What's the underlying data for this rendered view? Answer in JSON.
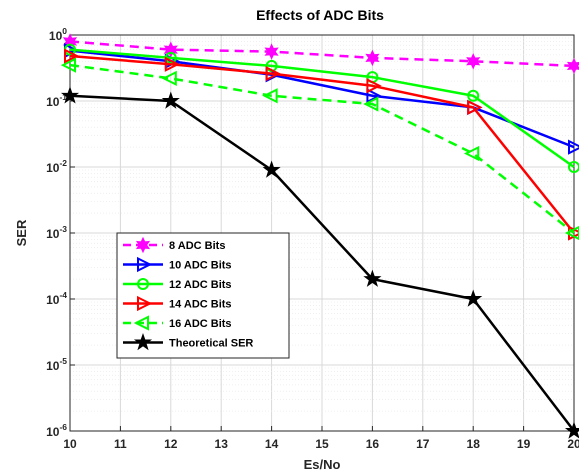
{
  "chart_data": {
    "type": "line",
    "title": "Effects of ADC Bits",
    "xlabel": "Es/No",
    "ylabel": "SER",
    "x": [
      10,
      12,
      14,
      16,
      18,
      20
    ],
    "xlim": [
      10,
      20
    ],
    "xticks": [
      "10",
      "11",
      "12",
      "13",
      "14",
      "15",
      "16",
      "17",
      "18",
      "19",
      "20"
    ],
    "y_scale": "log",
    "ylim": [
      1e-06,
      1
    ],
    "yticks": [
      {
        "base": "10",
        "exp": "0"
      },
      {
        "base": "10",
        "exp": "-1"
      },
      {
        "base": "10",
        "exp": "-2"
      },
      {
        "base": "10",
        "exp": "-3"
      },
      {
        "base": "10",
        "exp": "-4"
      },
      {
        "base": "10",
        "exp": "-5"
      },
      {
        "base": "10",
        "exp": "-6"
      }
    ],
    "grid": true,
    "legend_position": "lower-left",
    "series": [
      {
        "name": "8 ADC Bits",
        "color": "#ff00ff",
        "line": "dashed",
        "marker": "hexagram",
        "values": [
          0.8,
          0.6,
          0.56,
          0.45,
          0.4,
          0.34
        ]
      },
      {
        "name": "10 ADC Bits",
        "color": "#0000ff",
        "line": "solid",
        "marker": "triangle-right",
        "values": [
          0.58,
          0.4,
          0.25,
          0.12,
          0.08,
          0.02
        ]
      },
      {
        "name": "12 ADC Bits",
        "color": "#00ff00",
        "line": "solid",
        "marker": "circle",
        "values": [
          0.6,
          0.45,
          0.34,
          0.23,
          0.12,
          0.01
        ]
      },
      {
        "name": "14 ADC Bits",
        "color": "#ff0000",
        "line": "solid",
        "marker": "triangle-right",
        "values": [
          0.48,
          0.36,
          0.26,
          0.17,
          0.08,
          0.001
        ]
      },
      {
        "name": "16 ADC Bits",
        "color": "#00ff00",
        "line": "dashed",
        "marker": "triangle-left",
        "values": [
          0.35,
          0.22,
          0.12,
          0.09,
          0.016,
          0.001
        ]
      },
      {
        "name": "Theoretical SER",
        "color": "#000000",
        "line": "solid",
        "marker": "pentagram",
        "values": [
          0.12,
          0.1,
          0.009,
          0.0002,
          0.0001,
          1e-06
        ]
      }
    ]
  }
}
